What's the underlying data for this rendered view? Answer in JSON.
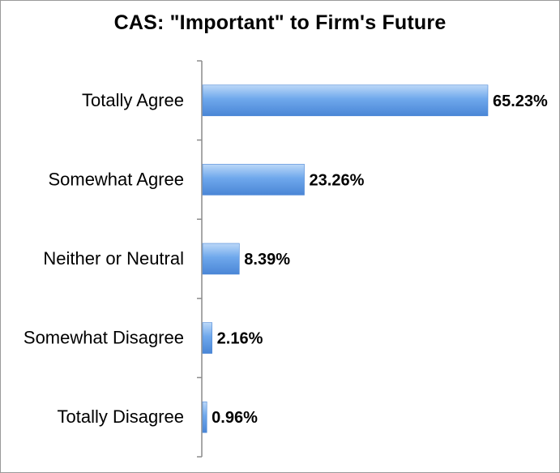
{
  "chart_data": {
    "type": "bar",
    "orientation": "horizontal",
    "title": "CAS: \"Important\" to Firm's Future",
    "categories": [
      "Totally Agree",
      "Somewhat Agree",
      "Neither or Neutral",
      "Somewhat Disagree",
      "Totally Disagree"
    ],
    "values": [
      65.23,
      23.26,
      8.39,
      2.16,
      0.96
    ],
    "data_labels": [
      "65.23%",
      "23.26%",
      "8.39%",
      "2.16%",
      "0.96%"
    ],
    "unit": "%",
    "xlim": [
      0,
      65.23
    ],
    "grid": false,
    "legend": "none",
    "bar_color": "#6fa8ec",
    "bar_color_light": "#bcd8f8",
    "bar_color_dark": "#4a86d6"
  }
}
